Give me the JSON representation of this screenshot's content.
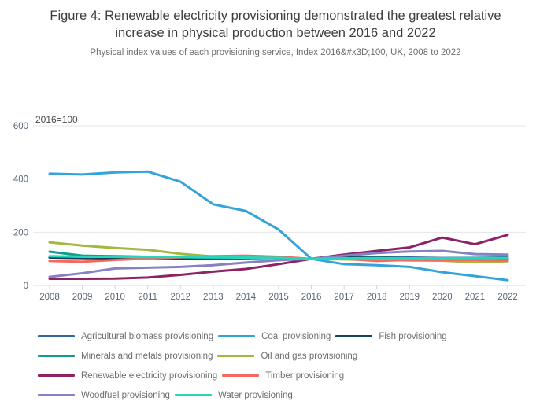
{
  "header": {
    "title": "Figure 4: Renewable electricity provisioning demonstrated the greatest relative increase in physical production between 2016 and 2022",
    "subtitle": "Physical index values of each provisioning service, Index 2016&#x3D;100, UK, 2008 to 2022"
  },
  "chart_data": {
    "type": "line",
    "title": "Figure 4: Renewable electricity provisioning demonstrated the greatest relative increase in physical production between 2016 and 2022",
    "subtitle": "Physical index values of each provisioning service, Index 2016&#x3D;100, UK, 2008 to 2022",
    "annotation": "2016=100",
    "x": [
      2008,
      2009,
      2010,
      2011,
      2012,
      2013,
      2014,
      2015,
      2016,
      2017,
      2018,
      2019,
      2020,
      2021,
      2022
    ],
    "yticks": [
      0,
      200,
      400,
      600
    ],
    "ylim": [
      0,
      620
    ],
    "grid": true,
    "legend_position": "bottom",
    "axis_color": "#5b6776",
    "grid_color": "#e6e6e6",
    "tick_color": "#ccd4e0",
    "series": [
      {
        "name": "Agricultural biomass provisioning",
        "color": "#31679b",
        "values": [
          108,
          106,
          105,
          104,
          103,
          102,
          103,
          102,
          100,
          104,
          106,
          105,
          103,
          104,
          105
        ]
      },
      {
        "name": "Coal provisioning",
        "color": "#33a3da",
        "values": [
          420,
          417,
          425,
          428,
          390,
          305,
          280,
          210,
          100,
          80,
          76,
          70,
          50,
          35,
          20
        ]
      },
      {
        "name": "Fish provisioning",
        "color": "#17405a",
        "values": [
          105,
          103,
          102,
          100,
          101,
          100,
          102,
          101,
          100,
          108,
          107,
          100,
          98,
          99,
          100
        ]
      },
      {
        "name": "Minerals and metals provisioning",
        "color": "#0f9e8c",
        "values": [
          127,
          112,
          110,
          108,
          106,
          104,
          103,
          101,
          100,
          101,
          100,
          100,
          99,
          100,
          101
        ]
      },
      {
        "name": "Oil and gas provisioning",
        "color": "#a4b83f",
        "values": [
          162,
          150,
          141,
          134,
          119,
          109,
          104,
          100,
          100,
          98,
          96,
          94,
          93,
          87,
          91
        ]
      },
      {
        "name": "Renewable electricity provisioning",
        "color": "#8e2363",
        "values": [
          25,
          25,
          26,
          30,
          40,
          52,
          62,
          80,
          100,
          116,
          130,
          143,
          180,
          155,
          190
        ]
      },
      {
        "name": "Timber provisioning",
        "color": "#f4685f",
        "values": [
          92,
          89,
          96,
          101,
          106,
          110,
          112,
          108,
          100,
          100,
          92,
          96,
          95,
          96,
          93
        ]
      },
      {
        "name": "Woodfuel provisioning",
        "color": "#8681c4",
        "values": [
          32,
          46,
          64,
          67,
          70,
          76,
          86,
          95,
          100,
          112,
          122,
          128,
          130,
          118,
          116
        ]
      },
      {
        "name": "Water provisioning",
        "color": "#28d5bb",
        "values": [
          110,
          108,
          108,
          107,
          107,
          106,
          105,
          104,
          100,
          102,
          103,
          102,
          102,
          103,
          103
        ]
      }
    ]
  },
  "legend": {
    "rows": [
      [
        0,
        1,
        2
      ],
      [
        3,
        4
      ],
      [
        5,
        6
      ],
      [
        7,
        8
      ]
    ]
  }
}
